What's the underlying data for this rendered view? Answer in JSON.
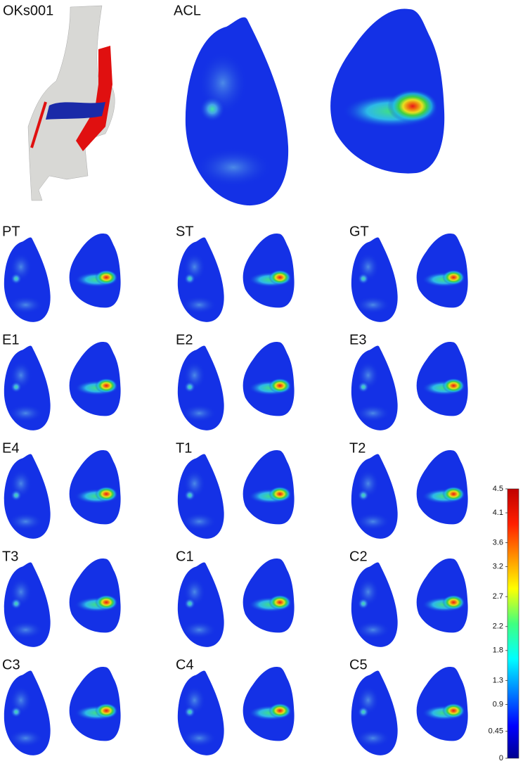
{
  "figure": {
    "title": "OKs001",
    "top_label": "ACL",
    "panels": [
      "PT",
      "ST",
      "GT",
      "E1",
      "E2",
      "E3",
      "E4",
      "T1",
      "T2",
      "T3",
      "C1",
      "C2",
      "C3",
      "C4",
      "C5"
    ],
    "colorbar": {
      "lim": [
        0,
        4.5
      ],
      "ticks": [
        4.5,
        4.1,
        3.6,
        3.2,
        2.7,
        2.2,
        1.8,
        1.3,
        0.9,
        0.45,
        0
      ]
    }
  }
}
